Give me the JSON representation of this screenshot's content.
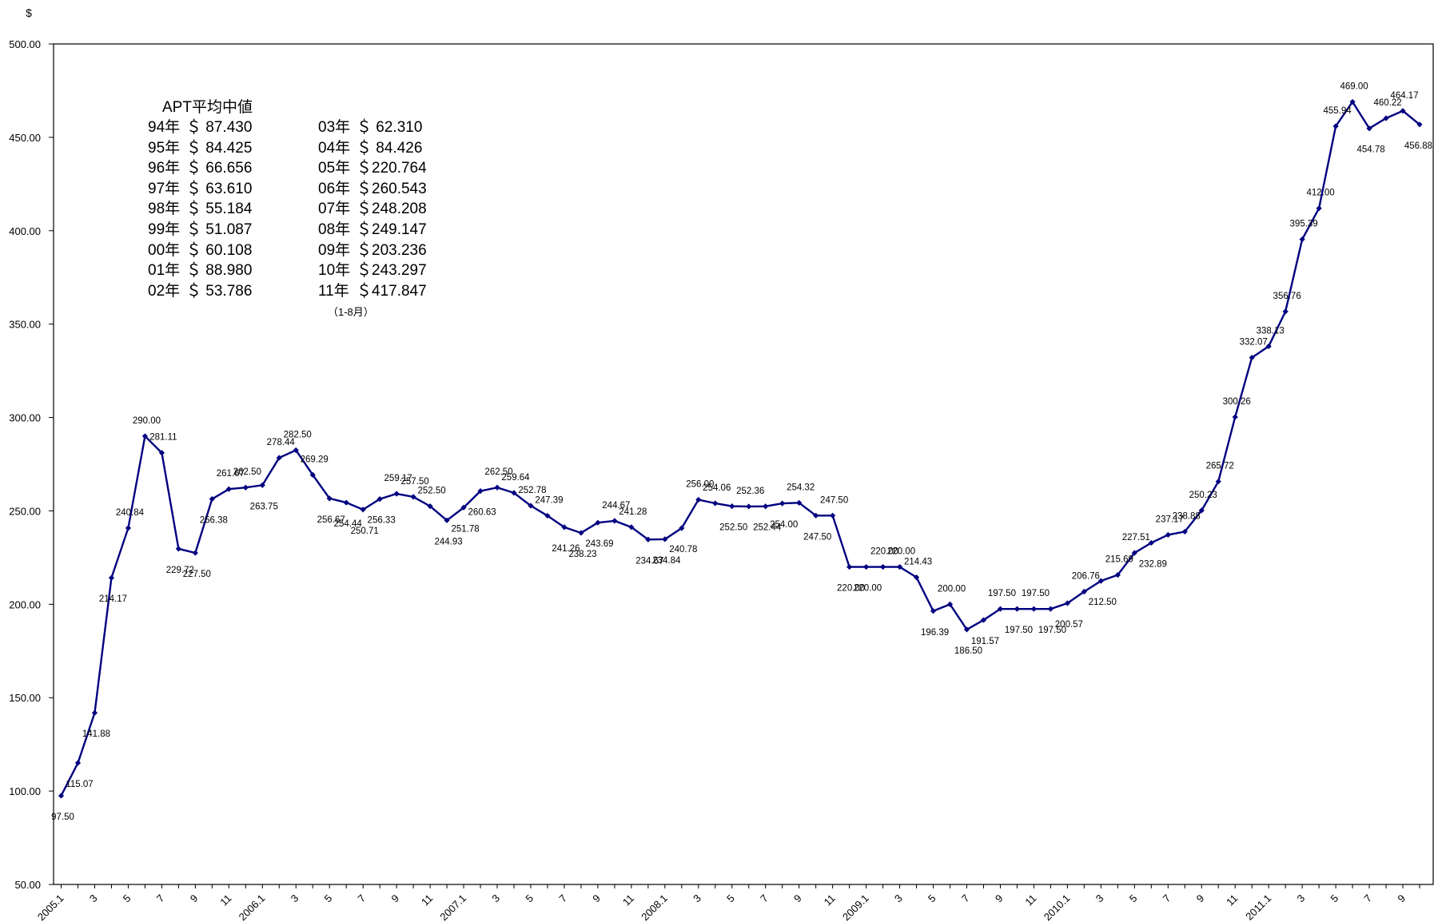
{
  "chart_data": {
    "type": "line",
    "y_unit_label": "$",
    "ylim": [
      50,
      500
    ],
    "y_ticks": [
      "50.00",
      "100.00",
      "150.00",
      "200.00",
      "250.00",
      "300.00",
      "350.00",
      "400.00",
      "450.00",
      "500.00"
    ],
    "x": [
      "2005.1",
      "2005.2",
      "2005.3",
      "2005.4",
      "2005.5",
      "2005.6",
      "2005.7",
      "2005.8",
      "2005.9",
      "2005.10",
      "2005.11",
      "2005.12",
      "2006.1",
      "2006.2",
      "2006.3",
      "2006.4",
      "2006.5",
      "2006.6",
      "2006.7",
      "2006.8",
      "2006.9",
      "2006.10",
      "2006.11",
      "2006.12",
      "2007.1",
      "2007.2",
      "2007.3",
      "2007.4",
      "2007.5",
      "2007.6",
      "2007.7",
      "2007.8",
      "2007.9",
      "2007.10",
      "2007.11",
      "2007.12",
      "2008.1",
      "2008.2",
      "2008.3",
      "2008.4",
      "2008.5",
      "2008.6",
      "2008.7",
      "2008.8",
      "2008.9",
      "2008.10",
      "2008.11",
      "2008.12",
      "2009.1",
      "2009.2",
      "2009.3",
      "2009.4",
      "2009.5",
      "2009.6",
      "2009.7",
      "2009.8",
      "2009.9",
      "2009.10",
      "2009.11",
      "2009.12",
      "2010.1",
      "2010.2",
      "2010.3",
      "2010.4",
      "2010.5",
      "2010.6",
      "2010.7",
      "2010.8",
      "2010.9",
      "2010.10",
      "2010.11",
      "2010.12",
      "2011.1",
      "2011.2",
      "2011.3",
      "2011.4",
      "2011.5",
      "2011.6",
      "2011.7",
      "2011.8",
      "2011.9",
      "2011.10"
    ],
    "x_tick_labels": [
      "2005.1",
      "3",
      "5",
      "7",
      "9",
      "11",
      "2006.1",
      "3",
      "5",
      "7",
      "9",
      "11",
      "2007.1",
      "3",
      "5",
      "7",
      "9",
      "11",
      "2008.1",
      "3",
      "5",
      "7",
      "9",
      "11",
      "2009.1",
      "3",
      "5",
      "7",
      "9",
      "11",
      "2010.1",
      "3",
      "5",
      "7",
      "9",
      "11",
      "2011.1",
      "3",
      "5",
      "7",
      "9"
    ],
    "series": [
      {
        "color": "#000080",
        "values": [
          97.5,
          115.07,
          141.88,
          214.17,
          240.84,
          290.0,
          281.11,
          229.72,
          227.5,
          256.38,
          261.67,
          262.5,
          263.75,
          278.44,
          282.5,
          269.29,
          256.67,
          254.44,
          250.71,
          256.33,
          259.17,
          257.5,
          252.5,
          244.93,
          251.78,
          260.63,
          262.5,
          259.64,
          252.78,
          247.39,
          241.26,
          238.23,
          243.69,
          244.67,
          241.28,
          234.67,
          234.84,
          240.78,
          256.0,
          254.06,
          252.5,
          252.36,
          252.44,
          254.0,
          254.32,
          247.5,
          247.5,
          220.0,
          220.0,
          220.0,
          220.0,
          214.43,
          196.39,
          200.0,
          186.5,
          191.57,
          197.5,
          197.5,
          197.5,
          197.5,
          200.57,
          206.76,
          212.5,
          215.69,
          227.51,
          232.89,
          237.17,
          238.88,
          250.23,
          265.72,
          300.26,
          332.07,
          338.13,
          356.76,
          395.39,
          412.0,
          455.94,
          469.0,
          454.78,
          460.22,
          464.17,
          456.88
        ],
        "labels": [
          "97.50",
          "115.07",
          "141.88",
          "214.17",
          "240.84",
          "290.00",
          "281.11",
          "229.72",
          "227.50",
          "256.38",
          "261.67",
          "262.50",
          "263.75",
          "278.44",
          "282.50",
          "269.29",
          "256.67",
          "254.44",
          "250.71",
          "256.33",
          "259.17",
          "257.50",
          "252.50",
          "244.93",
          "251.78",
          "260.63",
          "262.50",
          "259.64",
          "252.78",
          "247.39",
          "241.26",
          "238.23",
          "243.69",
          "244.67",
          "241.28",
          "234.67",
          "234.84",
          "240.78",
          "256.00",
          "254.06",
          "252.50",
          "252.36",
          "252.44",
          "254.00",
          "254.32",
          "247.50",
          "247.50",
          "220.00",
          "220.00",
          "220.00",
          "220.00",
          "214.43",
          "196.39",
          "200.00",
          "186.50",
          "191.57",
          "197.50",
          "197.50",
          "197.50",
          "197.50",
          "200.57",
          "206.76",
          "212.50",
          "215.69",
          "227.51",
          "232.89",
          "237.17",
          "238.88",
          "250.23",
          "265.72",
          "300.26",
          "332.07",
          "338.13",
          "356.76",
          "395.39",
          "412.00",
          "455.94",
          "469.00",
          "454.78",
          "460.22",
          "464.17",
          "456.88"
        ],
        "label_position": [
          "below",
          "below",
          "below",
          "below",
          "above",
          "above",
          "above",
          "below",
          "below",
          "below",
          "above",
          "above",
          "below",
          "above",
          "above",
          "above",
          "below",
          "below",
          "below",
          "below",
          "above",
          "above",
          "above",
          "below",
          "below",
          "below",
          "above",
          "above",
          "above",
          "above",
          "below",
          "below",
          "below",
          "above",
          "above",
          "below",
          "below",
          "below",
          "above",
          "above",
          "below",
          "above",
          "below",
          "below",
          "above",
          "below",
          "above",
          "below",
          "below",
          "above",
          "above",
          "above",
          "below",
          "above",
          "below",
          "below",
          "above",
          "below",
          "above",
          "below",
          "below",
          "above",
          "below",
          "above",
          "above",
          "below",
          "above",
          "above",
          "above",
          "above",
          "above",
          "above",
          "above",
          "above",
          "above",
          "above",
          "above",
          "above",
          "below",
          "above",
          "above",
          "below"
        ]
      }
    ],
    "grid": false,
    "legend_box": {
      "title": "APT平均中値",
      "rows": [
        {
          "year": "94年",
          "value": "＄ 87.430"
        },
        {
          "year": "95年",
          "value": "＄ 84.425"
        },
        {
          "year": "96年",
          "value": "＄ 66.656"
        },
        {
          "year": "97年",
          "value": "＄ 63.610"
        },
        {
          "year": "98年",
          "value": "＄ 55.184"
        },
        {
          "year": "99年",
          "value": "＄ 51.087"
        },
        {
          "year": "00年",
          "value": "＄ 60.108"
        },
        {
          "year": "01年",
          "value": "＄ 88.980"
        },
        {
          "year": "02年",
          "value": "＄ 53.786"
        },
        {
          "year": "03年",
          "value": "＄ 62.310"
        },
        {
          "year": "04年",
          "value": "＄ 84.426"
        },
        {
          "year": "05年",
          "value": "＄220.764"
        },
        {
          "year": "06年",
          "value": "＄260.543"
        },
        {
          "year": "07年",
          "value": "＄248.208"
        },
        {
          "year": "08年",
          "value": "＄249.147"
        },
        {
          "year": "09年",
          "value": "＄203.236"
        },
        {
          "year": "10年",
          "value": "＄243.297"
        },
        {
          "year": "11年",
          "value": "＄417.847"
        }
      ],
      "note": "（1-8月）"
    }
  }
}
